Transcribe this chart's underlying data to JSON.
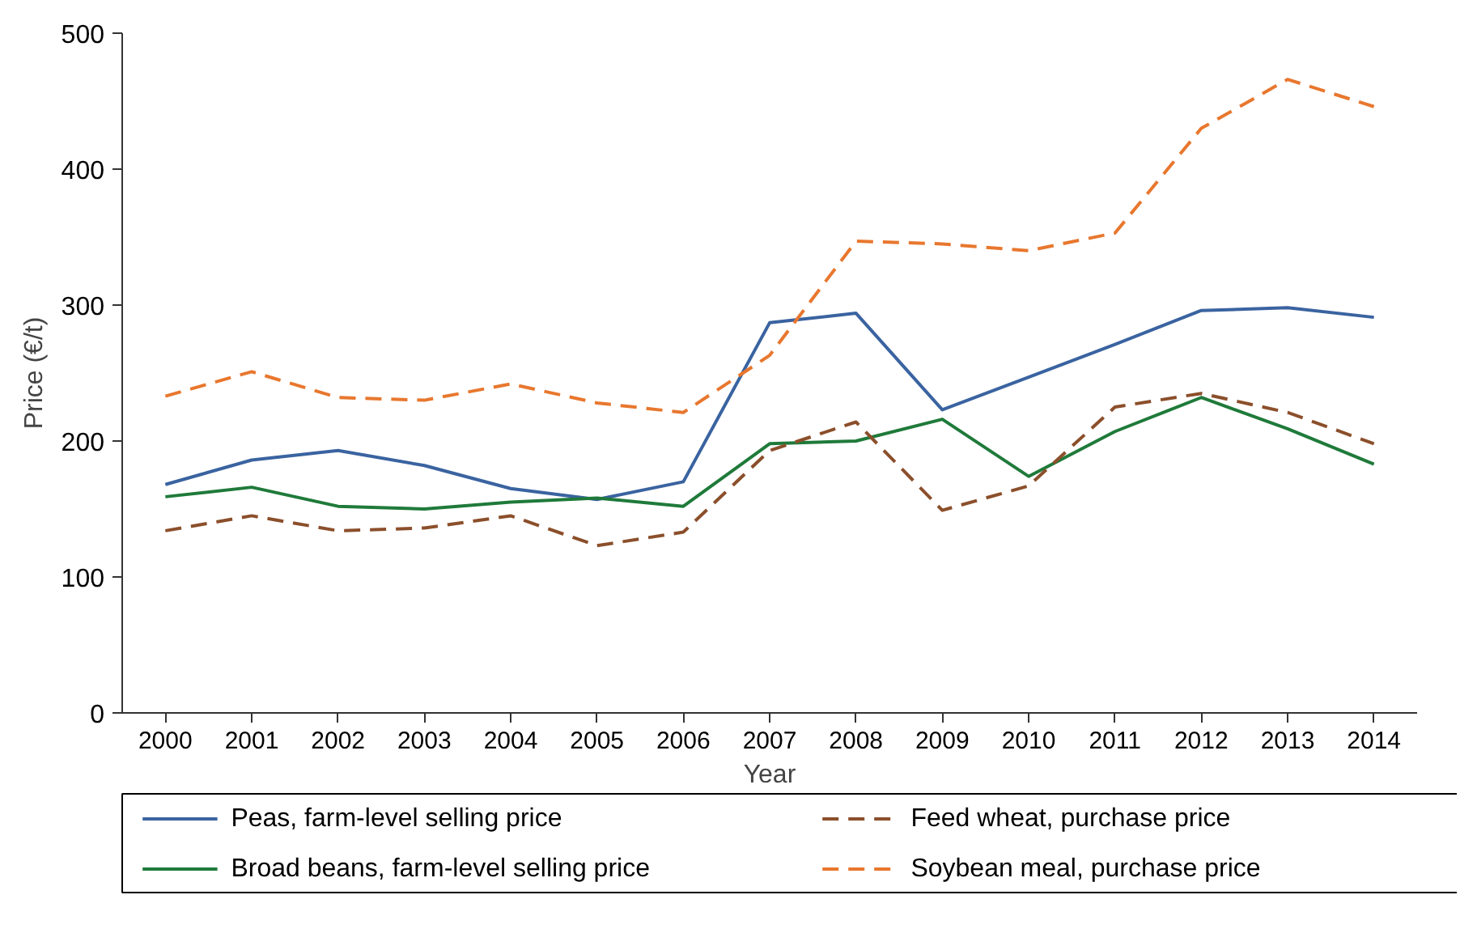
{
  "chart_data": {
    "type": "line",
    "xlabel": "Year",
    "ylabel": "Price (€/t)",
    "categories": [
      "2000",
      "2001",
      "2002",
      "2003",
      "2004",
      "2005",
      "2006",
      "2007",
      "2008",
      "2009",
      "2010",
      "2011",
      "2012",
      "2013",
      "2014"
    ],
    "ylim": [
      0,
      500
    ],
    "yticks": [
      0,
      100,
      200,
      300,
      400,
      500
    ],
    "grid": false,
    "legend": "bottom",
    "series": [
      {
        "name": "Peas, farm-level selling price",
        "color": "#3a63a0",
        "line_style": "solid",
        "values": [
          168,
          186,
          193,
          182,
          165,
          157,
          170,
          287,
          294,
          223,
          247,
          271,
          296,
          298,
          291
        ]
      },
      {
        "name": "Broad beans, farm-level selling price",
        "color": "#1f7a3a",
        "line_style": "solid",
        "values": [
          159,
          166,
          152,
          150,
          155,
          158,
          152,
          198,
          200,
          216,
          174,
          207,
          232,
          209,
          183
        ]
      },
      {
        "name": "Feed wheat, purchase price",
        "color": "#8b4f2b",
        "line_style": "dashed",
        "values": [
          134,
          145,
          134,
          136,
          145,
          123,
          133,
          193,
          214,
          149,
          167,
          225,
          235,
          221,
          198
        ]
      },
      {
        "name": "Soybean meal, purchase price",
        "color": "#e8772e",
        "line_style": "dashed",
        "values": [
          233,
          251,
          232,
          230,
          242,
          228,
          221,
          263,
          347,
          345,
          340,
          353,
          430,
          466,
          446
        ]
      }
    ]
  }
}
